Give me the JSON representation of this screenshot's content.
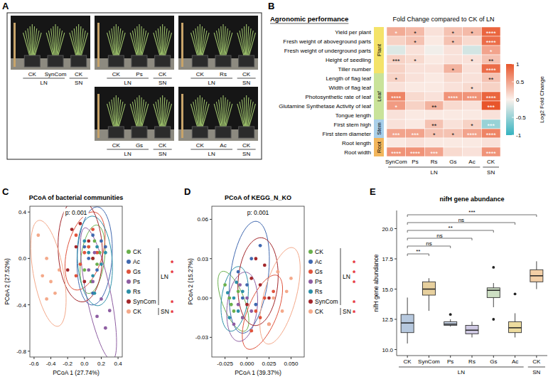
{
  "panel_labels": [
    "A",
    "B",
    "C",
    "D",
    "E"
  ],
  "photo_panel": {
    "panels": [
      {
        "labels": [
          "CK",
          "SynCom",
          "CK"
        ],
        "groups": [
          {
            "label": "LN",
            "size": 2
          },
          {
            "label": "SN",
            "size": 1
          }
        ]
      },
      {
        "labels": [
          "CK",
          "Ps",
          "CK"
        ],
        "groups": [
          {
            "label": "LN",
            "size": 2
          },
          {
            "label": "SN",
            "size": 1
          }
        ]
      },
      {
        "labels": [
          "CK",
          "Rs",
          "CK"
        ],
        "groups": [
          {
            "label": "LN",
            "size": 2
          },
          {
            "label": "SN",
            "size": 1
          }
        ]
      },
      {
        "labels": [
          "CK",
          "Gs",
          "CK"
        ],
        "groups": [
          {
            "label": "LN",
            "size": 2
          },
          {
            "label": "SN",
            "size": 1
          }
        ]
      },
      {
        "labels": [
          "CK",
          "Ac",
          "CK"
        ],
        "groups": [
          {
            "label": "LN",
            "size": 2
          },
          {
            "label": "SN",
            "size": 1
          }
        ]
      }
    ]
  },
  "chart_data": [
    {
      "type": "heatmap",
      "title": "Fold Change compared to CK of LN",
      "row_header": "Agronomic performance",
      "rows": [
        "Yield per plant",
        "Fresh weight of aboveground parts",
        "Fresh weight of underground parts",
        "Height of seedling",
        "Tiller number",
        "Length of flag leaf",
        "Width of flag leaf",
        "Photosynthetic rate of leaf",
        "Glutamine Synthetase Activity of leaf",
        "Tongue length",
        "First stem high",
        "First stem diameter",
        "Root length",
        "Root width"
      ],
      "row_groups": [
        {
          "label": "Plant",
          "color": "#f4e36a",
          "size": 5
        },
        {
          "label": "Leaf",
          "color": "#c9e39a",
          "size": 5
        },
        {
          "label": "Stem",
          "color": "#a9cfe9",
          "size": 2
        },
        {
          "label": "Root",
          "color": "#f2b65c",
          "size": 2
        }
      ],
      "columns": [
        "SynCom",
        "Ps",
        "Rs",
        "Gs",
        "Ac",
        "CK"
      ],
      "column_groups": [
        {
          "label": "LN",
          "size": 5
        },
        {
          "label": "SN",
          "size": 1
        }
      ],
      "cells": [
        [
          0.45,
          0.35,
          0.1,
          0.3,
          0.35,
          0.9
        ],
        [
          0.2,
          0.3,
          0.05,
          0.3,
          0.15,
          0.85
        ],
        [
          -0.15,
          0.1,
          -0.05,
          0.1,
          -0.2,
          0.5
        ],
        [
          0.2,
          0.15,
          0.05,
          0.1,
          0.1,
          0.3
        ],
        [
          0.2,
          0.1,
          0.1,
          0.4,
          0.1,
          0.85
        ],
        [
          0.2,
          0.1,
          0.05,
          0.15,
          0.1,
          0.3
        ],
        [
          0.1,
          0.05,
          0.05,
          0.1,
          0.15,
          0.2
        ],
        [
          0.7,
          0.15,
          0.1,
          0.6,
          0.6,
          0.9
        ],
        [
          0.55,
          0.2,
          0.4,
          0.15,
          0.1,
          1
        ],
        [
          0.1,
          0.05,
          0.05,
          0.05,
          0.05,
          0.1
        ],
        [
          0.1,
          0.05,
          0.3,
          0.1,
          0.2,
          -0.5
        ],
        [
          0.5,
          0.5,
          0.3,
          0.3,
          0.5,
          0.7
        ],
        [
          0.05,
          0.1,
          0.05,
          0.05,
          0.05,
          0.1
        ],
        [
          0.6,
          0.6,
          0.5,
          0.15,
          0.1,
          0.6
        ]
      ],
      "significance": [
        [
          "*",
          "*",
          null,
          "*",
          "*",
          "****"
        ],
        [
          null,
          "*",
          null,
          "*",
          null,
          "****"
        ],
        [
          null,
          null,
          null,
          null,
          null,
          "*"
        ],
        [
          "***",
          "*",
          null,
          null,
          "*",
          "**"
        ],
        [
          null,
          null,
          null,
          "*",
          null,
          "****"
        ],
        [
          "*",
          null,
          null,
          null,
          null,
          "**"
        ],
        [
          null,
          null,
          null,
          null,
          "*",
          null
        ],
        [
          "****",
          null,
          null,
          "****",
          "****",
          "****"
        ],
        [
          "*",
          null,
          "**",
          null,
          null,
          "***"
        ],
        [
          null,
          null,
          null,
          null,
          null,
          null
        ],
        [
          null,
          null,
          "**",
          null,
          "*",
          "***"
        ],
        [
          "***",
          "***",
          "*",
          "*",
          "****",
          "****"
        ],
        [
          null,
          null,
          null,
          null,
          null,
          null
        ],
        [
          "****",
          "****",
          "***",
          null,
          null,
          "****"
        ]
      ],
      "colorbar": {
        "title": "Log2 Fold Change",
        "range": [
          -1,
          1
        ],
        "ticks": [
          -1,
          -0.5,
          0,
          0.5,
          1
        ],
        "colors": [
          "#35b3c0",
          "#fbf1ec",
          "#e8552b"
        ]
      }
    },
    {
      "type": "scatter",
      "title": "PCoA of bacterial communities",
      "annotation": "p: 0.001",
      "x_label": "PCoA 1 (27.74%)",
      "y_label": "PCoA 2 (27.52%)",
      "xlim": [
        -0.65,
        0.45
      ],
      "ylim": [
        -0.85,
        0.45
      ],
      "xticks": [
        -0.6,
        -0.4,
        -0.2,
        {
          "value": 0,
          "label": "0.0"
        },
        0.2,
        0.4
      ],
      "yticks": [
        -0.8,
        -0.4,
        {
          "value": 0,
          "label": "0.0"
        },
        0.4
      ],
      "grid": false,
      "legend": "right",
      "series": [
        {
          "name": "CK",
          "group": "LN",
          "color": "#6ab04c",
          "significance": null,
          "x": [
            0.05,
            0.1,
            0.15,
            0.0,
            0.12,
            0.08,
            0.18
          ],
          "values": [
            0.1,
            0.0,
            -0.05,
            -0.1,
            0.15,
            -0.2,
            0.05
          ]
        },
        {
          "name": "Ac",
          "group": "LN",
          "color": "#4169b0",
          "significance": "*",
          "x": [
            0.1,
            0.2,
            0.05,
            0.15,
            0.25,
            0.0,
            0.1
          ],
          "values": [
            0.2,
            0.15,
            0.0,
            -0.1,
            0.1,
            0.1,
            -0.3
          ]
        },
        {
          "name": "Gs",
          "group": "LN",
          "color": "#e0533c",
          "significance": "*",
          "x": [
            -0.1,
            0.0,
            0.05,
            -0.05,
            0.1,
            0.15,
            -0.1
          ],
          "values": [
            0.2,
            0.05,
            0.1,
            -0.05,
            0.25,
            0.05,
            -0.15
          ]
        },
        {
          "name": "Ps",
          "group": "LN",
          "color": "#8e5ea2",
          "significance": null,
          "x": [
            0.1,
            0.2,
            0.05,
            0.15,
            0.25,
            0.12,
            0.3
          ],
          "values": [
            -0.2,
            -0.35,
            -0.1,
            -0.5,
            -0.6,
            0.05,
            -0.45
          ]
        },
        {
          "name": "Rs",
          "group": "LN",
          "color": "#2c8fa8",
          "significance": null,
          "x": [
            0.05,
            0.15,
            0.2,
            0.1,
            0.0,
            0.25,
            0.12
          ],
          "values": [
            0.05,
            0.1,
            -0.05,
            -0.15,
            0.15,
            0.05,
            -0.3
          ]
        },
        {
          "name": "SynCom",
          "group": "LN",
          "color": "#a3272b",
          "significance": "*",
          "x": [
            -0.1,
            0.05,
            -0.2,
            0.0,
            -0.15,
            0.1,
            -0.05
          ],
          "values": [
            0.1,
            0.15,
            -0.1,
            -0.2,
            0.25,
            0.0,
            0.3
          ]
        },
        {
          "name": "CK",
          "group": "SN",
          "color": "#f4a98a",
          "significance": "*",
          "x": [
            -0.45,
            -0.4,
            -0.5,
            -0.55,
            -0.35,
            -0.3,
            -0.45
          ],
          "values": [
            0.0,
            -0.2,
            -0.15,
            0.2,
            -0.3,
            -0.1,
            -0.35
          ]
        }
      ]
    },
    {
      "type": "scatter",
      "title": "PCoA of KEGG_N_KO",
      "annotation": "p: 0.001",
      "x_label": "PCoA 1 (39.37%)",
      "y_label": "PCoA 2 (15.27%)",
      "xlim": [
        -0.04,
        0.065
      ],
      "ylim": [
        -0.045,
        0.07
      ],
      "xticks": [
        -0.025,
        {
          "value": 0,
          "label": "0.000"
        },
        0.025,
        {
          "value": 0.05,
          "label": "0.050"
        }
      ],
      "yticks": [
        -0.03,
        {
          "value": 0,
          "label": "0.00"
        },
        0.03,
        0.06
      ],
      "grid": false,
      "legend": "right",
      "series": [
        {
          "name": "CK",
          "group": "LN",
          "color": "#6ab04c",
          "significance": null,
          "x": [
            -0.02,
            -0.015,
            -0.01,
            -0.025,
            -0.005,
            -0.018
          ],
          "values": [
            0.0,
            -0.01,
            0.005,
            0.01,
            -0.015,
            -0.005
          ]
        },
        {
          "name": "Ac",
          "group": "LN",
          "color": "#4169b0",
          "significance": "*",
          "x": [
            0.0,
            0.005,
            -0.01,
            0.01,
            0.015,
            -0.005
          ],
          "values": [
            0.01,
            0.03,
            0.02,
            -0.005,
            0.04,
            0.0
          ]
        },
        {
          "name": "Gs",
          "group": "LN",
          "color": "#e0533c",
          "significance": "*",
          "x": [
            0.01,
            0.02,
            0.025,
            0.005,
            0.015,
            0.03
          ],
          "values": [
            -0.01,
            0.0,
            -0.02,
            -0.025,
            -0.015,
            0.005
          ]
        },
        {
          "name": "Ps",
          "group": "LN",
          "color": "#8e5ea2",
          "significance": "*",
          "x": [
            -0.01,
            -0.005,
            0.0,
            -0.015,
            0.005,
            -0.008
          ],
          "values": [
            -0.005,
            -0.015,
            0.0,
            -0.02,
            -0.01,
            0.01
          ]
        },
        {
          "name": "Rs",
          "group": "LN",
          "color": "#2c8fa8",
          "significance": null,
          "x": [
            -0.015,
            -0.01,
            -0.02,
            -0.005,
            -0.012,
            -0.022
          ],
          "values": [
            0.0,
            -0.01,
            -0.015,
            0.005,
            0.012,
            0.004
          ]
        },
        {
          "name": "SynCom",
          "group": "LN",
          "color": "#a3272b",
          "significance": "*",
          "x": [
            0.005,
            0.015,
            0.02,
            0.0,
            0.025,
            0.01
          ],
          "values": [
            0.015,
            0.01,
            0.025,
            -0.005,
            0.0,
            0.03
          ]
        },
        {
          "name": "CK",
          "group": "SN",
          "color": "#f4a98a",
          "significance": "*",
          "x": [
            0.03,
            0.04,
            0.035,
            0.045,
            0.025,
            0.05
          ],
          "values": [
            0.0,
            -0.01,
            0.02,
            0.005,
            -0.02,
            0.015
          ]
        }
      ]
    },
    {
      "type": "box",
      "title": "nifH gene abundance",
      "y_label": "nifH gene abundance",
      "categories": [
        "CK",
        "SynCom",
        "Ps",
        "Rs",
        "Gs",
        "Ac",
        "CK"
      ],
      "groups": [
        "LN",
        "LN",
        "LN",
        "LN",
        "LN",
        "LN",
        "SN"
      ],
      "colors": [
        "#b6c8de",
        "#e7d09e",
        "#c8d5e8",
        "#cfc9e3",
        "#cddfc3",
        "#eedc9f",
        "#f3cfa6"
      ],
      "min": [
        10.5,
        13.2,
        11.9,
        11.0,
        13.5,
        11.0,
        15.0
      ],
      "q1": [
        11.4,
        14.5,
        12.0,
        11.3,
        14.3,
        11.4,
        15.6
      ],
      "median": [
        12.2,
        15.0,
        12.1,
        11.6,
        14.9,
        11.8,
        16.1
      ],
      "q3": [
        12.9,
        15.6,
        12.3,
        12.0,
        15.1,
        12.3,
        16.6
      ],
      "max": [
        14.3,
        15.9,
        12.5,
        12.3,
        15.5,
        13.0,
        17.3
      ],
      "outliers": [
        [],
        [],
        [
          12.9
        ],
        [],
        [
          16.8,
          12.5
        ],
        [
          14.6
        ],
        []
      ],
      "comparison_labels": [
        null,
        "**",
        "ns",
        "ns",
        "**",
        "ns",
        "***"
      ],
      "ylim": [
        9.5,
        21.5
      ],
      "yticks": [
        {
          "value": 10,
          "label": "10.0"
        },
        12.5,
        {
          "value": 15,
          "label": "15.0"
        },
        17.5,
        {
          "value": 20,
          "label": "20.0"
        }
      ],
      "grid": false
    }
  ]
}
